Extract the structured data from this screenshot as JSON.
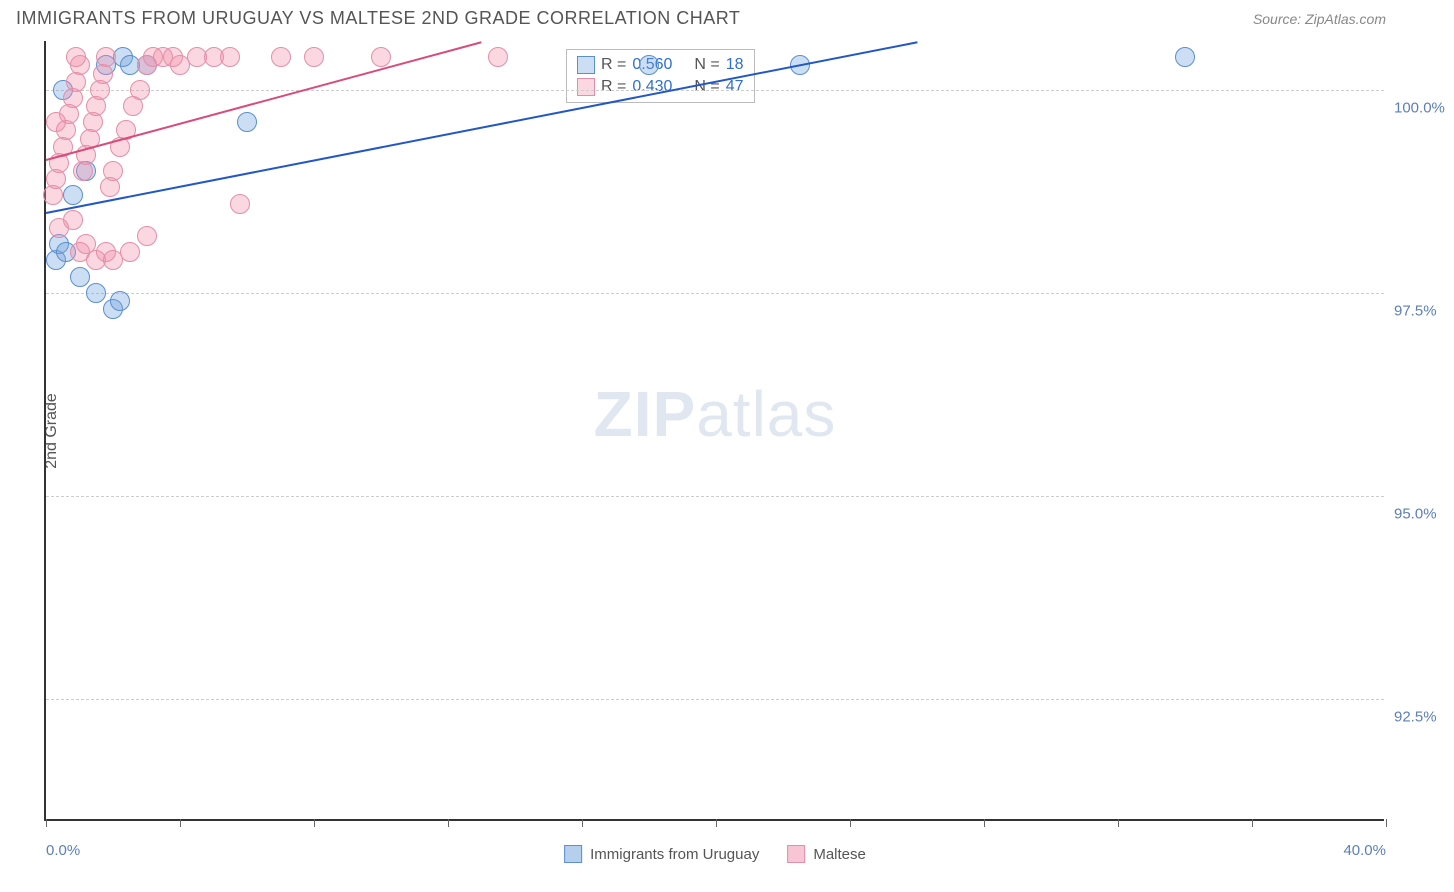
{
  "header": {
    "title": "IMMIGRANTS FROM URUGUAY VS MALTESE 2ND GRADE CORRELATION CHART",
    "source": "Source: ZipAtlas.com"
  },
  "chart": {
    "type": "scatter",
    "ylabel": "2nd Grade",
    "watermark_bold": "ZIP",
    "watermark_light": "atlas",
    "background_color": "#ffffff",
    "grid_color": "#cccccc",
    "axis_color": "#333333",
    "label_color": "#5b7fb8",
    "xlim": [
      0,
      40
    ],
    "ylim": [
      91,
      100.6
    ],
    "ytick_labels": [
      {
        "value": 100.0,
        "label": "100.0%"
      },
      {
        "value": 97.5,
        "label": "97.5%"
      },
      {
        "value": 95.0,
        "label": "95.0%"
      },
      {
        "value": 92.5,
        "label": "92.5%"
      }
    ],
    "xtick_positions": [
      0,
      4,
      8,
      12,
      16,
      20,
      24,
      28,
      32,
      36,
      40
    ],
    "xtick_labels": [
      {
        "value": 0,
        "label": "0.0%"
      },
      {
        "value": 40,
        "label": "40.0%"
      }
    ],
    "series": [
      {
        "name": "Immigrants from Uruguay",
        "key": "uruguay",
        "color_fill": "rgba(110,160,220,0.35)",
        "color_stroke": "#5b8fd0",
        "line_color": "#2257c5",
        "r_value": "0.560",
        "n_value": "18",
        "points": [
          {
            "x": 0.3,
            "y": 97.9
          },
          {
            "x": 0.4,
            "y": 98.1
          },
          {
            "x": 0.6,
            "y": 98.0
          },
          {
            "x": 1.0,
            "y": 97.7
          },
          {
            "x": 1.5,
            "y": 97.5
          },
          {
            "x": 2.0,
            "y": 97.3
          },
          {
            "x": 2.2,
            "y": 97.4
          },
          {
            "x": 0.8,
            "y": 98.7
          },
          {
            "x": 1.2,
            "y": 99.0
          },
          {
            "x": 1.8,
            "y": 100.3
          },
          {
            "x": 2.3,
            "y": 100.4
          },
          {
            "x": 2.5,
            "y": 100.3
          },
          {
            "x": 3.0,
            "y": 100.3
          },
          {
            "x": 0.5,
            "y": 100.0
          },
          {
            "x": 6.0,
            "y": 99.6
          },
          {
            "x": 18.0,
            "y": 100.3
          },
          {
            "x": 22.5,
            "y": 100.3
          },
          {
            "x": 34.0,
            "y": 100.4
          }
        ],
        "trend": {
          "x1": 0,
          "y1": 98.5,
          "x2": 26,
          "y2": 100.6
        }
      },
      {
        "name": "Maltese",
        "key": "maltese",
        "color_fill": "rgba(240,140,170,0.35)",
        "color_stroke": "#e38fa8",
        "line_color": "#d94b7a",
        "r_value": "0.430",
        "n_value": "47",
        "points": [
          {
            "x": 0.2,
            "y": 98.7
          },
          {
            "x": 0.3,
            "y": 98.9
          },
          {
            "x": 0.4,
            "y": 99.1
          },
          {
            "x": 0.5,
            "y": 99.3
          },
          {
            "x": 0.6,
            "y": 99.5
          },
          {
            "x": 0.7,
            "y": 99.7
          },
          {
            "x": 0.8,
            "y": 99.9
          },
          {
            "x": 0.9,
            "y": 100.1
          },
          {
            "x": 1.0,
            "y": 100.3
          },
          {
            "x": 1.1,
            "y": 99.0
          },
          {
            "x": 1.2,
            "y": 99.2
          },
          {
            "x": 1.3,
            "y": 99.4
          },
          {
            "x": 1.4,
            "y": 99.6
          },
          {
            "x": 1.5,
            "y": 99.8
          },
          {
            "x": 1.6,
            "y": 100.0
          },
          {
            "x": 1.7,
            "y": 100.2
          },
          {
            "x": 1.8,
            "y": 100.4
          },
          {
            "x": 1.9,
            "y": 98.8
          },
          {
            "x": 2.0,
            "y": 99.0
          },
          {
            "x": 2.2,
            "y": 99.3
          },
          {
            "x": 2.4,
            "y": 99.5
          },
          {
            "x": 2.6,
            "y": 99.8
          },
          {
            "x": 2.8,
            "y": 100.0
          },
          {
            "x": 3.0,
            "y": 100.3
          },
          {
            "x": 3.2,
            "y": 100.4
          },
          {
            "x": 3.5,
            "y": 100.4
          },
          {
            "x": 3.8,
            "y": 100.4
          },
          {
            "x": 4.0,
            "y": 100.3
          },
          {
            "x": 4.5,
            "y": 100.4
          },
          {
            "x": 5.0,
            "y": 100.4
          },
          {
            "x": 5.5,
            "y": 100.4
          },
          {
            "x": 0.4,
            "y": 98.3
          },
          {
            "x": 0.8,
            "y": 98.4
          },
          {
            "x": 1.0,
            "y": 98.0
          },
          {
            "x": 1.2,
            "y": 98.1
          },
          {
            "x": 1.5,
            "y": 97.9
          },
          {
            "x": 1.8,
            "y": 98.0
          },
          {
            "x": 2.0,
            "y": 97.9
          },
          {
            "x": 2.5,
            "y": 98.0
          },
          {
            "x": 3.0,
            "y": 98.2
          },
          {
            "x": 5.8,
            "y": 98.6
          },
          {
            "x": 7.0,
            "y": 100.4
          },
          {
            "x": 8.0,
            "y": 100.4
          },
          {
            "x": 10.0,
            "y": 100.4
          },
          {
            "x": 13.5,
            "y": 100.4
          },
          {
            "x": 0.3,
            "y": 99.6
          },
          {
            "x": 0.9,
            "y": 100.4
          }
        ],
        "trend": {
          "x1": 0,
          "y1": 99.15,
          "x2": 13,
          "y2": 100.6
        }
      }
    ],
    "marker_radius": 10,
    "marker_stroke_width": 1.2,
    "line_width": 2,
    "legend": {
      "r_label": "R =",
      "n_label": "N ="
    },
    "bottom_legend": {
      "items": [
        {
          "label": "Immigrants from Uruguay",
          "fill": "rgba(110,160,220,0.5)",
          "stroke": "#5b8fd0"
        },
        {
          "label": "Maltese",
          "fill": "rgba(240,140,170,0.5)",
          "stroke": "#e38fa8"
        }
      ]
    }
  }
}
